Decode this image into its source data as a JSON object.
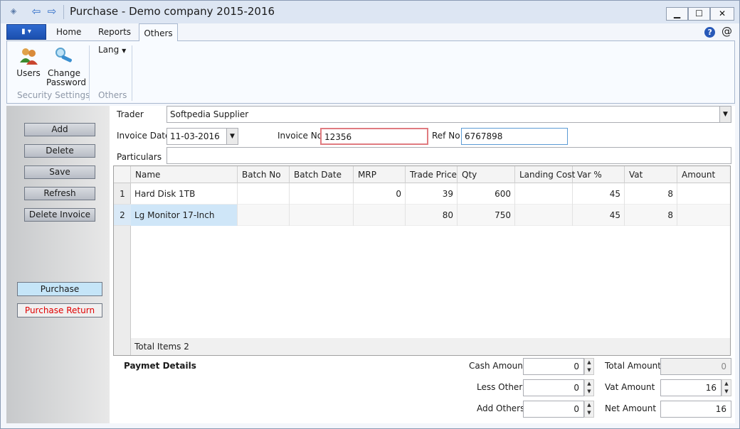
{
  "window": {
    "title": "Purchase - Demo company 2015-2016",
    "min_icon": "minimize-icon",
    "max_icon": "maximize-icon",
    "close_icon": "close-icon"
  },
  "ribbon_tabs": [
    "Home",
    "Reports",
    "Others"
  ],
  "active_tab": "Others",
  "ribbon": {
    "users_label": "Users",
    "change_password_label_1": "Change",
    "change_password_label_2": "Password",
    "group1": "Security Settings",
    "lang_label": "Lang",
    "group2": "Others"
  },
  "sidebar": {
    "add": "Add",
    "delete": "Delete",
    "save": "Save",
    "refresh": "Refresh",
    "delete_invoice": "Delete Invoice",
    "purchase": "Purchase",
    "purchase_return": "Purchase Return"
  },
  "form": {
    "trader_label": "Trader",
    "trader_value": "Softpedia Supplier",
    "invoice_date_label": "Invoice Date",
    "invoice_date_value": "11-03-2016",
    "invoice_no_label": "Invoice No",
    "invoice_no_value": "12356",
    "ref_no_label": "Ref No",
    "ref_no_value": "6767898",
    "particulars_label": "Particulars",
    "particulars_value": ""
  },
  "grid": {
    "columns": [
      "Name",
      "Batch No",
      "Batch Date",
      "MRP",
      "Trade Price",
      "Qty",
      "Landing Cost",
      "Var %",
      "Vat",
      "Amount"
    ],
    "rows": [
      {
        "num": "1",
        "name": "Hard Disk 1TB",
        "batch_no": "",
        "batch_date": "",
        "mrp": "0",
        "trade_price": "39",
        "qty": "600",
        "landing_cost": "",
        "var": "45",
        "vat": "8",
        "amount": ""
      },
      {
        "num": "2",
        "name": "Lg Monitor 17-Inch",
        "batch_no": "",
        "batch_date": "",
        "mrp": "",
        "trade_price": "80",
        "qty": "750",
        "landing_cost": "",
        "var": "45",
        "vat": "8",
        "amount": ""
      }
    ],
    "footer": "Total Items 2"
  },
  "payment": {
    "title": "Paymet Details",
    "cash_amount_label": "Cash Amount",
    "cash_amount": "0",
    "less_others_label": "Less Others",
    "less_others": "0",
    "add_others_label": "Add Others",
    "add_others": "0",
    "total_amount_label": "Total Amount",
    "total_amount": "0",
    "vat_amount_label": "Vat Amount",
    "vat_amount": "16",
    "net_amount_label": "Net Amount",
    "net_amount": "16"
  }
}
